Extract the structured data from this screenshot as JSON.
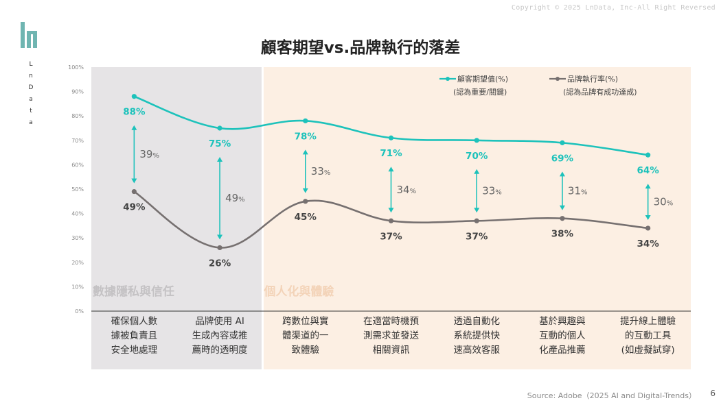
{
  "header": {
    "copyright": "Copyright © 2025 LnData, Inc-All Right Reversed",
    "brand": "LnData",
    "title": "顧客期望vs.品牌執行的落差"
  },
  "footer": {
    "source": "Source: Adobe（2025 AI and Digital-Trends）",
    "page": "6"
  },
  "sections": [
    {
      "label": "數據隱私與信任",
      "span": [
        0,
        1
      ],
      "color": "#e6e4e6",
      "text_color": "#c4c2c4"
    },
    {
      "label": "個人化與體驗",
      "span": [
        2,
        6
      ],
      "color": "#fcefe3",
      "text_color": "#f3d3b8"
    }
  ],
  "legend": [
    {
      "name": "顧客期望值(%)",
      "note": "(認為重要/關鍵)",
      "color": "#1dc2bb"
    },
    {
      "name": "品牌執行率(%)",
      "note": "(認為品牌有成功達成)",
      "color": "#767070"
    }
  ],
  "colors": {
    "expectation": "#1dc2bb",
    "execution": "#767070",
    "gap_arrow": "#1dc2bb",
    "gap_text": "#666666"
  },
  "chart_data": {
    "type": "line",
    "title": "顧客期望vs.品牌執行的落差",
    "categories": [
      [
        "確保個人數",
        "據被負責且",
        "安全地處理"
      ],
      [
        "品牌使用 AI",
        "生成內容或推",
        "薦時的透明度"
      ],
      [
        "跨數位與實",
        "體渠道的一",
        "致體驗"
      ],
      [
        "在適當時機預",
        "測需求並發送",
        "相關資訊"
      ],
      [
        "透過自動化",
        "系統提供快",
        "速高效客服"
      ],
      [
        "基於興趣與",
        "互動的個人",
        "化產品推薦"
      ],
      [
        "提升線上體驗",
        "的互動工具",
        "(如虛擬試穿)"
      ]
    ],
    "series": [
      {
        "name": "顧客期望值(%)",
        "values": [
          88,
          75,
          78,
          71,
          70,
          69,
          64
        ],
        "labels": [
          "88%",
          "75%",
          "78%",
          "71%",
          "70%",
          "69%",
          "64%"
        ]
      },
      {
        "name": "品牌執行率(%)",
        "values": [
          49,
          26,
          45,
          37,
          37,
          38,
          34
        ],
        "labels": [
          "49%",
          "26%",
          "45%",
          "37%",
          "37%",
          "38%",
          "34%"
        ]
      }
    ],
    "gaps": [
      39,
      49,
      33,
      34,
      33,
      31,
      30
    ],
    "gap_unit": "%",
    "yticks": [
      "0%",
      "10%",
      "20%",
      "30%",
      "40%",
      "50%",
      "60%",
      "70%",
      "80%",
      "90%",
      "100%"
    ],
    "ylim": [
      0,
      100
    ],
    "grid": false,
    "legend_position": "top-right",
    "smooth": true
  }
}
